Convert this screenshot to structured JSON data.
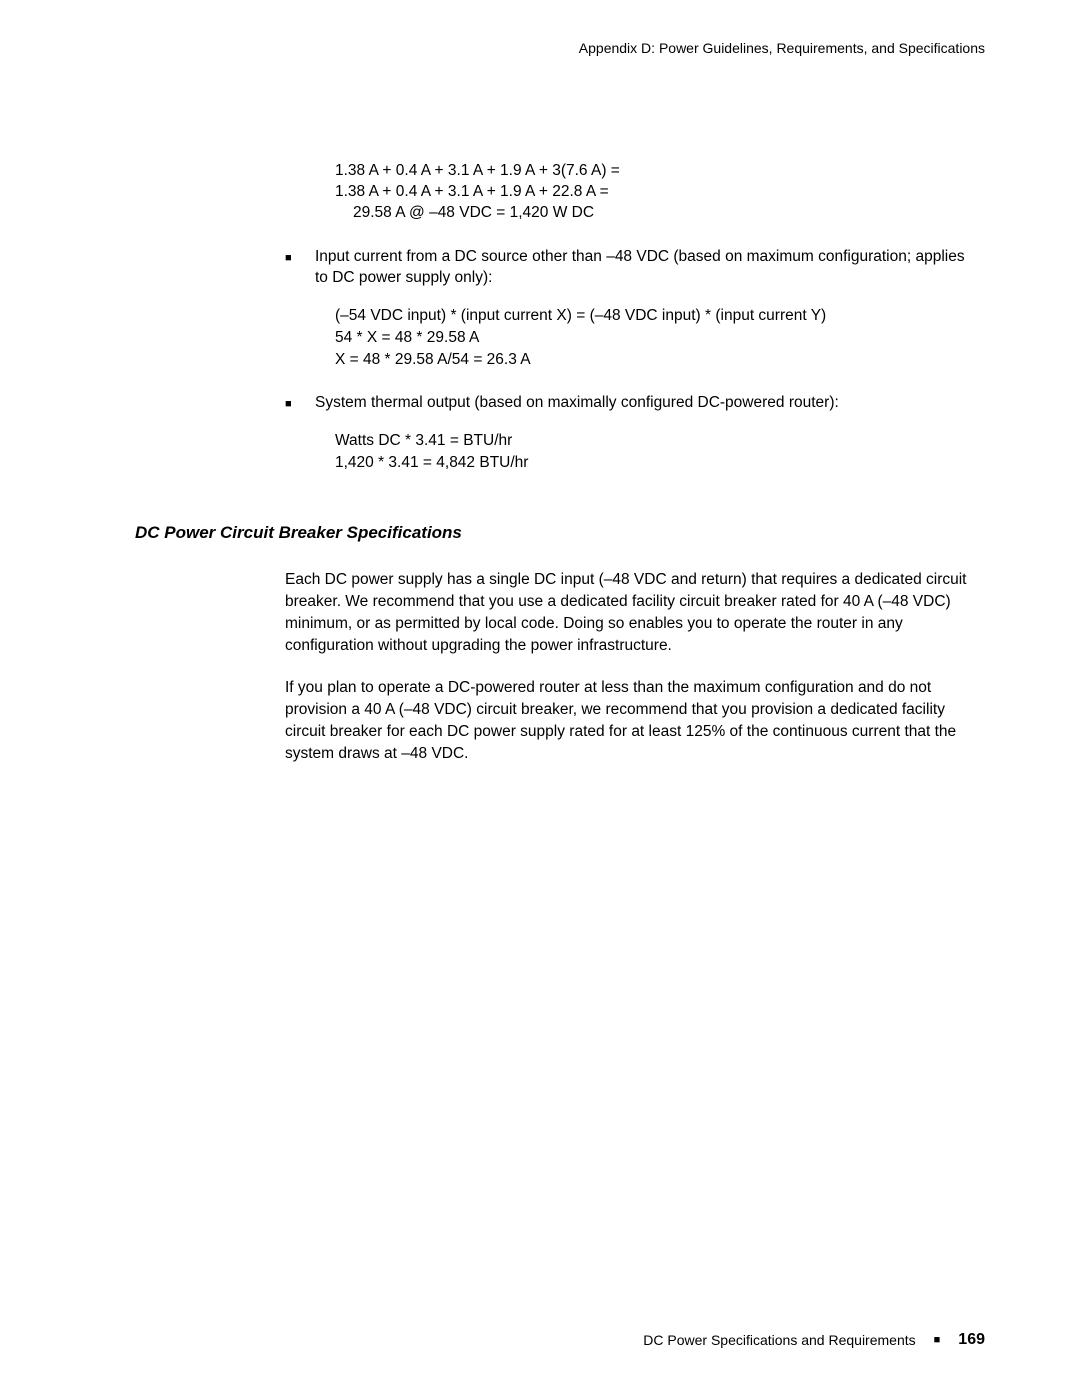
{
  "header": {
    "running_title": "Appendix D: Power Guidelines, Requirements, and Specifications"
  },
  "calc1": {
    "line1": "1.38 A + 0.4 A + 3.1 A + 1.9 A + 3(7.6 A) =",
    "line2": "1.38 A + 0.4 A + 3.1 A + 1.9 A + 22.8 A =",
    "line3": "29.58 A @ –48 VDC = 1,420 W DC"
  },
  "bullet1": {
    "text": "Input current from a DC source other than –48 VDC (based on maximum configuration; applies to DC power supply only):"
  },
  "calc2": {
    "line1": "(–54 VDC input) * (input current X) = (–48 VDC input) * (input current Y)",
    "line2": "54 * X = 48 * 29.58 A",
    "line3": "X = 48 * 29.58 A/54 = 26.3 A"
  },
  "bullet2": {
    "text": "System thermal output (based on maximally configured DC-powered router):"
  },
  "calc3": {
    "line1": "Watts DC * 3.41 = BTU/hr",
    "line2": "1,420 * 3.41 = 4,842 BTU/hr"
  },
  "section": {
    "heading": "DC Power Circuit Breaker Specifications",
    "para1": "Each DC power supply has a single DC input (–48 VDC and return) that requires a dedicated circuit breaker. We recommend that you use a dedicated facility circuit breaker rated for 40 A (–48 VDC) minimum, or as permitted by local code. Doing so enables you to operate the router in any configuration without upgrading the power infrastructure.",
    "para2": "If you plan to operate a DC-powered router at less than the maximum configuration and do not provision a 40 A (–48 VDC) circuit breaker, we recommend that you provision a dedicated facility circuit breaker for each DC power supply rated for at least 125% of the continuous current that the system draws at –48 VDC."
  },
  "footer": {
    "section_title": "DC Power Specifications and Requirements",
    "page_number": "169"
  }
}
